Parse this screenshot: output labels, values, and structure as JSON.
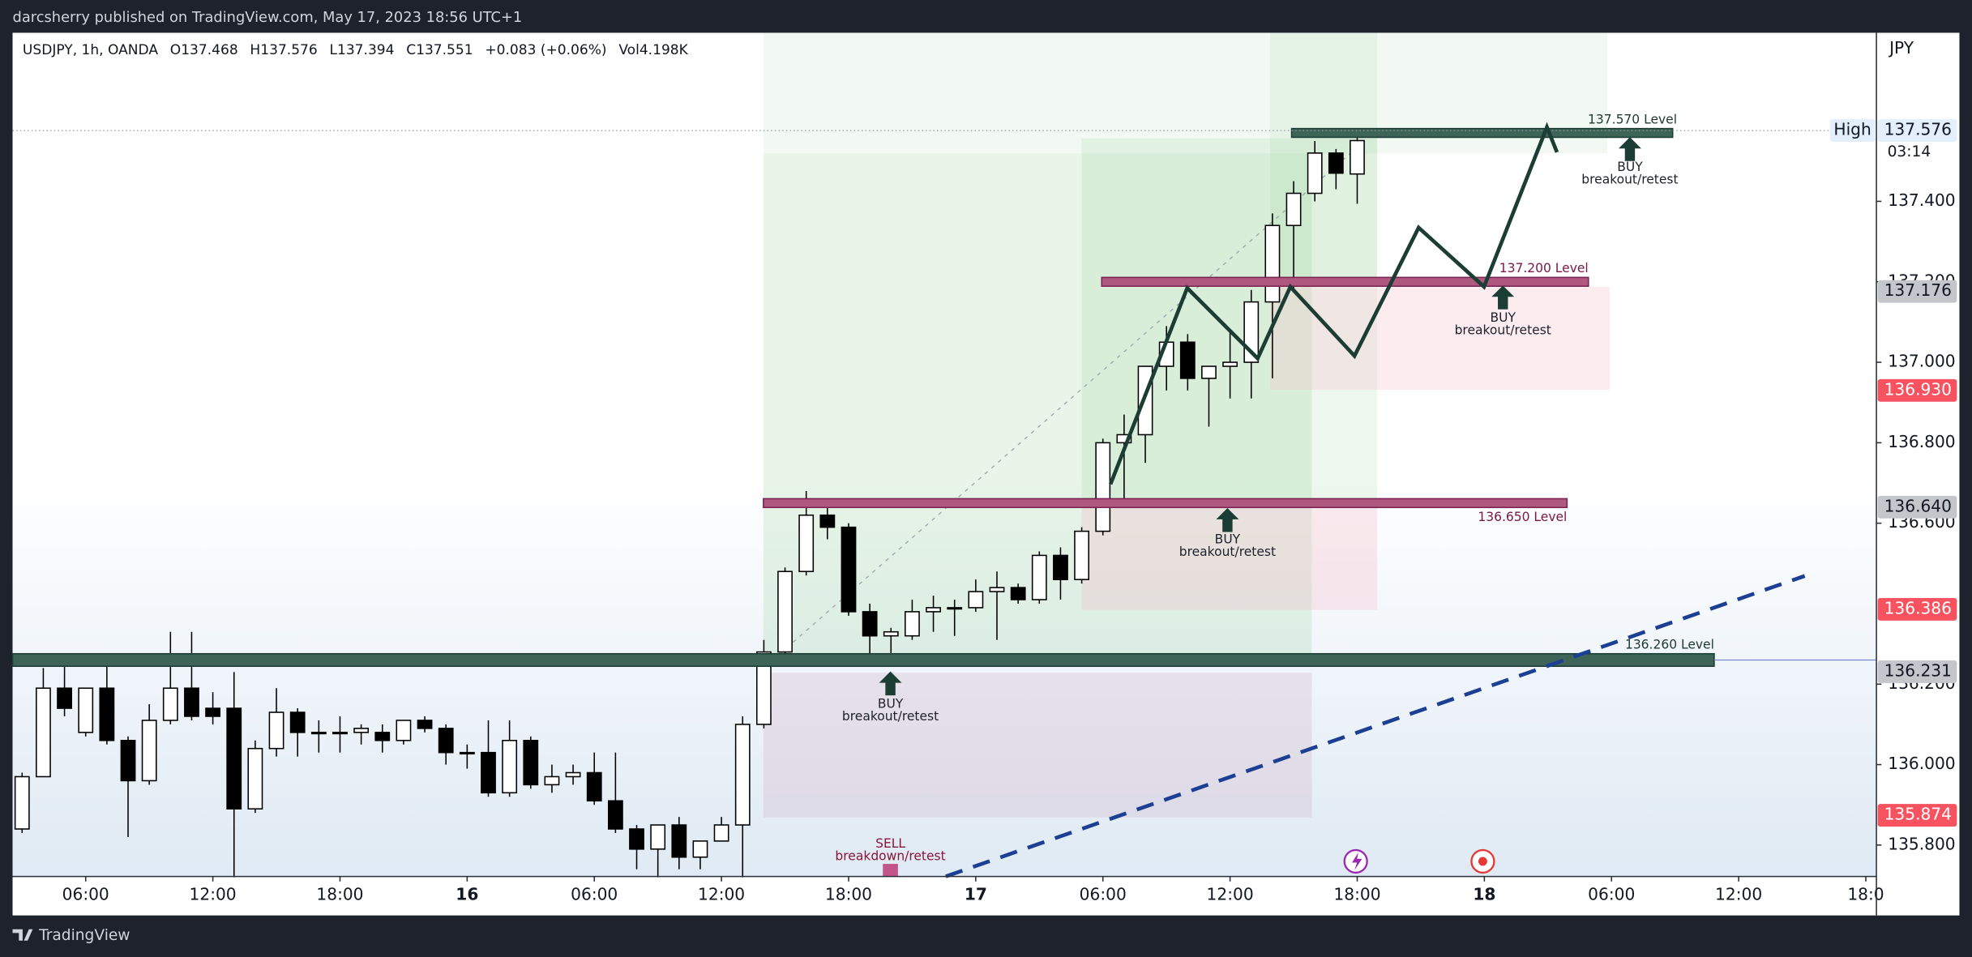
{
  "header": {
    "publisher": "darcsherry published on TradingView.com, May 17, 2023 18:56 UTC+1"
  },
  "footer": {
    "brand": "TradingView"
  },
  "chart_data": {
    "type": "candlestick",
    "legend": [
      "USDJPY, 1h, OANDA",
      "O137.468",
      "H137.576",
      "L137.394",
      "C137.551",
      "+0.083 (+0.06%)",
      "Vol4.198K"
    ],
    "currency": "JPY",
    "high_label": "High",
    "countdown": "03:14",
    "up_color": "#ffffff",
    "down_color": "#000000",
    "open": [
      135.84,
      135.97,
      136.19,
      136.08,
      136.19,
      136.06,
      135.96,
      136.11,
      136.19,
      136.14,
      136.14,
      135.89,
      136.04,
      136.13,
      136.08,
      136.08,
      136.08,
      136.08,
      136.06,
      136.11,
      136.09,
      136.03,
      136.03,
      135.93,
      136.06,
      135.95,
      135.97,
      135.98,
      135.91,
      135.84,
      135.79,
      135.85,
      135.77,
      135.81,
      135.85,
      136.1,
      136.28,
      136.48,
      136.62,
      136.59,
      136.38,
      136.32,
      136.32,
      136.38,
      136.39,
      136.39,
      136.43,
      136.44,
      136.41,
      136.52,
      136.46,
      136.58,
      136.8,
      136.82,
      136.99,
      137.05,
      136.96,
      136.99,
      137.0,
      137.15,
      137.34,
      137.42,
      137.52,
      137.468
    ],
    "high": [
      135.98,
      136.24,
      136.27,
      136.19,
      136.26,
      136.07,
      136.15,
      136.33,
      136.33,
      136.18,
      136.23,
      136.06,
      136.19,
      136.14,
      136.11,
      136.12,
      136.1,
      136.1,
      136.11,
      136.12,
      136.1,
      136.05,
      136.11,
      136.11,
      136.07,
      136.0,
      136.0,
      136.03,
      136.03,
      135.85,
      135.85,
      135.87,
      135.81,
      135.87,
      136.12,
      136.31,
      136.49,
      136.68,
      136.65,
      136.6,
      136.4,
      136.34,
      136.41,
      136.42,
      136.41,
      136.46,
      136.48,
      136.45,
      136.53,
      136.54,
      136.59,
      136.81,
      136.87,
      136.99,
      137.09,
      137.07,
      136.99,
      137.08,
      137.18,
      137.37,
      137.45,
      137.55,
      137.53,
      137.576
    ],
    "low": [
      135.83,
      135.97,
      136.12,
      136.07,
      136.05,
      135.82,
      135.95,
      136.1,
      136.11,
      136.1,
      135.72,
      135.88,
      136.02,
      136.02,
      136.03,
      136.03,
      136.05,
      136.03,
      136.05,
      136.08,
      136.0,
      135.99,
      135.92,
      135.92,
      135.94,
      135.93,
      135.95,
      135.9,
      135.83,
      135.74,
      135.72,
      135.74,
      135.74,
      135.81,
      135.72,
      136.09,
      136.27,
      136.47,
      136.56,
      136.37,
      136.27,
      136.27,
      136.31,
      136.33,
      136.32,
      136.38,
      136.31,
      136.4,
      136.4,
      136.41,
      136.45,
      136.57,
      136.66,
      136.75,
      136.93,
      136.93,
      136.84,
      136.91,
      136.91,
      136.96,
      137.18,
      137.4,
      137.43,
      137.394
    ],
    "close": [
      135.97,
      136.19,
      136.14,
      136.19,
      136.06,
      135.96,
      136.11,
      136.19,
      136.12,
      136.12,
      135.89,
      136.04,
      136.13,
      136.08,
      136.08,
      136.08,
      136.09,
      136.06,
      136.11,
      136.09,
      136.03,
      136.03,
      135.93,
      136.06,
      135.95,
      135.97,
      135.98,
      135.91,
      135.84,
      135.79,
      135.85,
      135.77,
      135.81,
      135.85,
      136.1,
      136.28,
      136.48,
      136.62,
      136.59,
      136.38,
      136.32,
      136.33,
      136.38,
      136.39,
      136.39,
      136.43,
      136.44,
      136.41,
      136.52,
      136.46,
      136.58,
      136.8,
      136.82,
      136.99,
      137.05,
      136.96,
      136.99,
      137.0,
      137.15,
      137.34,
      137.42,
      137.52,
      137.47,
      137.551
    ],
    "xlim": [
      -0.45,
      87.5
    ],
    "xticks": [
      {
        "value": 3,
        "label": "06:00"
      },
      {
        "value": 9,
        "label": "12:00"
      },
      {
        "value": 15,
        "label": "18:00"
      },
      {
        "value": 21,
        "label": "16"
      },
      {
        "value": 27,
        "label": "06:00"
      },
      {
        "value": 33,
        "label": "12:00"
      },
      {
        "value": 39,
        "label": "18:00"
      },
      {
        "value": 45,
        "label": "17"
      },
      {
        "value": 51,
        "label": "06:00"
      },
      {
        "value": 57,
        "label": "12:00"
      },
      {
        "value": 63,
        "label": "18:00"
      },
      {
        "value": 69,
        "label": "18"
      },
      {
        "value": 75,
        "label": "06:00"
      },
      {
        "value": 81,
        "label": "12:00"
      },
      {
        "value": 87,
        "label": "18:0"
      }
    ],
    "ylim": [
      135.722,
      137.819
    ],
    "yticks": [
      {
        "value": 135.8,
        "label": "135.800"
      },
      {
        "value": 136.0,
        "label": "136.000"
      },
      {
        "value": 136.2,
        "label": "136.200"
      },
      {
        "value": 136.6,
        "label": "136.600"
      },
      {
        "value": 136.8,
        "label": "136.800"
      },
      {
        "value": 137.0,
        "label": "137.000"
      },
      {
        "value": 137.2,
        "label": "137.200"
      },
      {
        "value": 137.4,
        "label": "137.400"
      }
    ],
    "price_tags": [
      {
        "value": 137.576,
        "label": "137.576",
        "color": "#e3effd"
      },
      {
        "value": 137.176,
        "label": "137.176",
        "color": "#c4c6cc"
      },
      {
        "value": 136.93,
        "label": "136.930",
        "color": "#f7525f"
      },
      {
        "value": 136.64,
        "label": "136.640",
        "color": "#c4c6cc"
      },
      {
        "value": 136.386,
        "label": "136.386",
        "color": "#f7525f"
      },
      {
        "value": 136.231,
        "label": "136.231",
        "color": "#c4c6cc"
      },
      {
        "value": 135.874,
        "label": "135.874",
        "color": "#f7525f"
      }
    ],
    "levels": [
      {
        "value": 137.57,
        "label": "137.570 Level",
        "color": "#3e6458"
      },
      {
        "value": 137.2,
        "label": "137.200 Level",
        "color": "#b0597f"
      },
      {
        "value": 136.65,
        "label": "136.650 Level",
        "color": "#b0597f"
      },
      {
        "value": 136.26,
        "label": "136.260 Level",
        "color": "#3e6458"
      }
    ],
    "annotations": [
      {
        "action": "BUY",
        "text": "breakout/retest"
      },
      {
        "action": "BUY",
        "text": "breakout/retest"
      },
      {
        "action": "BUY",
        "text": "breakout/retest"
      },
      {
        "action": "BUY",
        "text": "breakout/retest"
      },
      {
        "action": "SELL",
        "text": "breakdown/retest"
      }
    ]
  }
}
